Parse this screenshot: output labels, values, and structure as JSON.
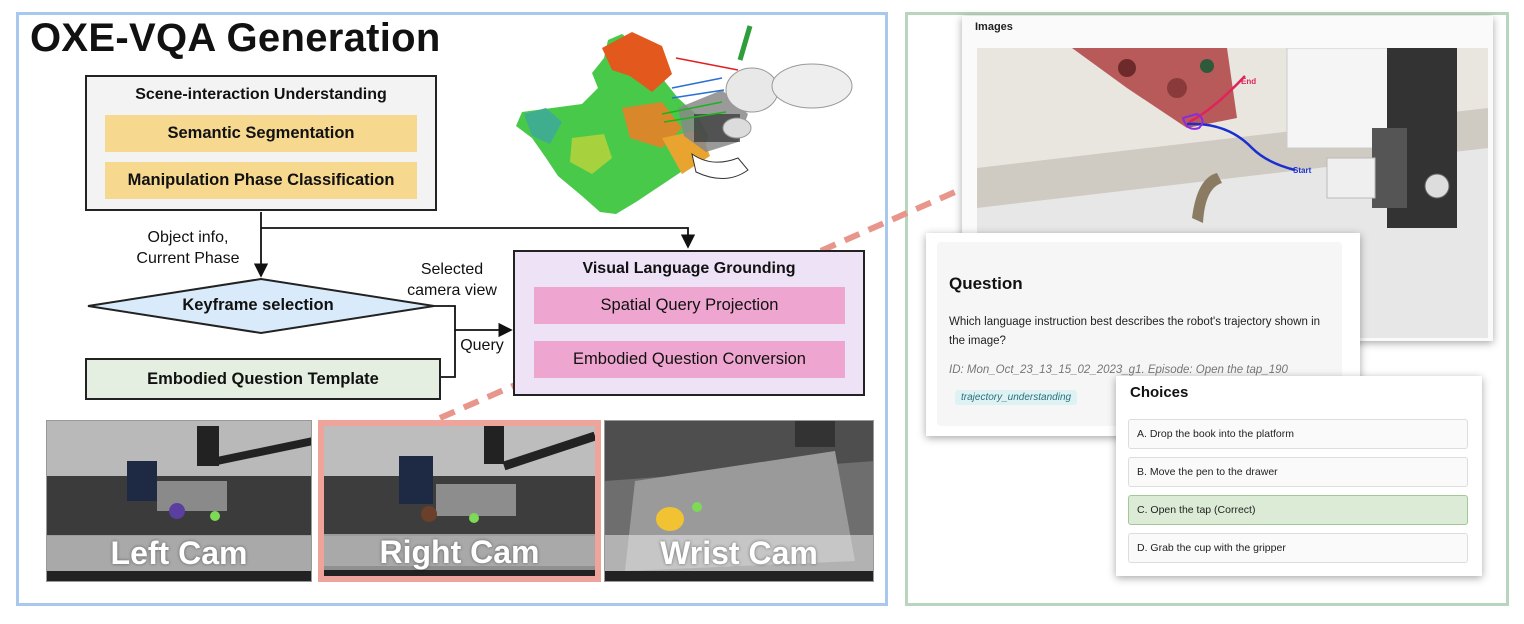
{
  "title": "OXE-VQA Generation",
  "scene_understanding": {
    "title": "Scene-interaction Understanding",
    "items": [
      "Semantic Segmentation",
      "Manipulation Phase Classification"
    ]
  },
  "labels": {
    "object_info_line1": "Object info,",
    "object_info_line2": "Current Phase",
    "selected_line1": "Selected",
    "selected_line2": "camera view",
    "query": "Query"
  },
  "keyframe_selection": "Keyframe selection",
  "embodied_question_template": "Embodied Question Template",
  "visual_language_grounding": {
    "title": "Visual Language Grounding",
    "items": [
      "Spatial Query Projection",
      "Embodied Question Conversion"
    ]
  },
  "cameras": [
    "Left Cam",
    "Right Cam",
    "Wrist Cam"
  ],
  "images_card": {
    "label": "Images",
    "trajectory_end": "End",
    "trajectory_start": "Start"
  },
  "question_card": {
    "heading": "Question",
    "text": "Which language instruction best describes the robot's trajectory shown in the image?",
    "id_line": "ID: Mon_Oct_23_13_15_02_2023_g1. Episode: Open the tap_190",
    "tag": "trajectory_understanding"
  },
  "choices_card": {
    "heading": "Choices",
    "options": [
      "A. Drop the book into the platform",
      "B. Move the pen to the drawer",
      "C. Open the tap (Correct)",
      "D. Grab the cup with the gripper"
    ],
    "correct_index": 2
  },
  "colors": {
    "left_panel_border": "#a9c8ee",
    "right_panel_border": "#b9d5bd",
    "scene_items": "#f6d88f",
    "grounding_items": "#eea5cf",
    "grounding_box": "#eee2f7",
    "keyframe_diamond": "#d9ebfa",
    "template_box": "#e4efe1",
    "selected_cam_border": "#eea39b",
    "dashed_arrow": "#e8958c",
    "correct_choice": "#dcebd6"
  }
}
